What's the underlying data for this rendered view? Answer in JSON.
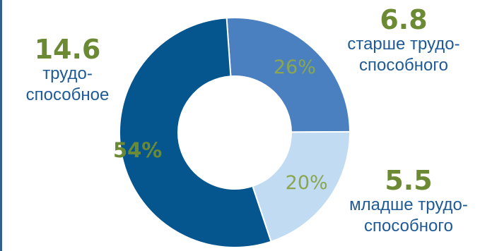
{
  "colors": {
    "accent_green": "#6b8a33",
    "label_blue": "#1f5a96"
  },
  "chart_data": {
    "type": "pie",
    "variant": "donut",
    "categories": [
      "трудоспособное",
      "старше трудоспособного",
      "младше трудоспособного"
    ],
    "values": [
      54,
      26,
      20
    ],
    "slice_labels": [
      "54%",
      "26%",
      "20%"
    ],
    "absolute_values": [
      14.6,
      6.8,
      5.5
    ],
    "colors": [
      "#05568e",
      "#4b80c0",
      "#c0dbf2"
    ],
    "callouts": [
      {
        "value": "14.6",
        "label_lines": [
          "трудо-",
          "способное"
        ]
      },
      {
        "value": "6.8",
        "label_lines": [
          "старше трудо-",
          "способного"
        ]
      },
      {
        "value": "5.5",
        "label_lines": [
          "младше трудо-",
          "способного"
        ]
      }
    ]
  }
}
